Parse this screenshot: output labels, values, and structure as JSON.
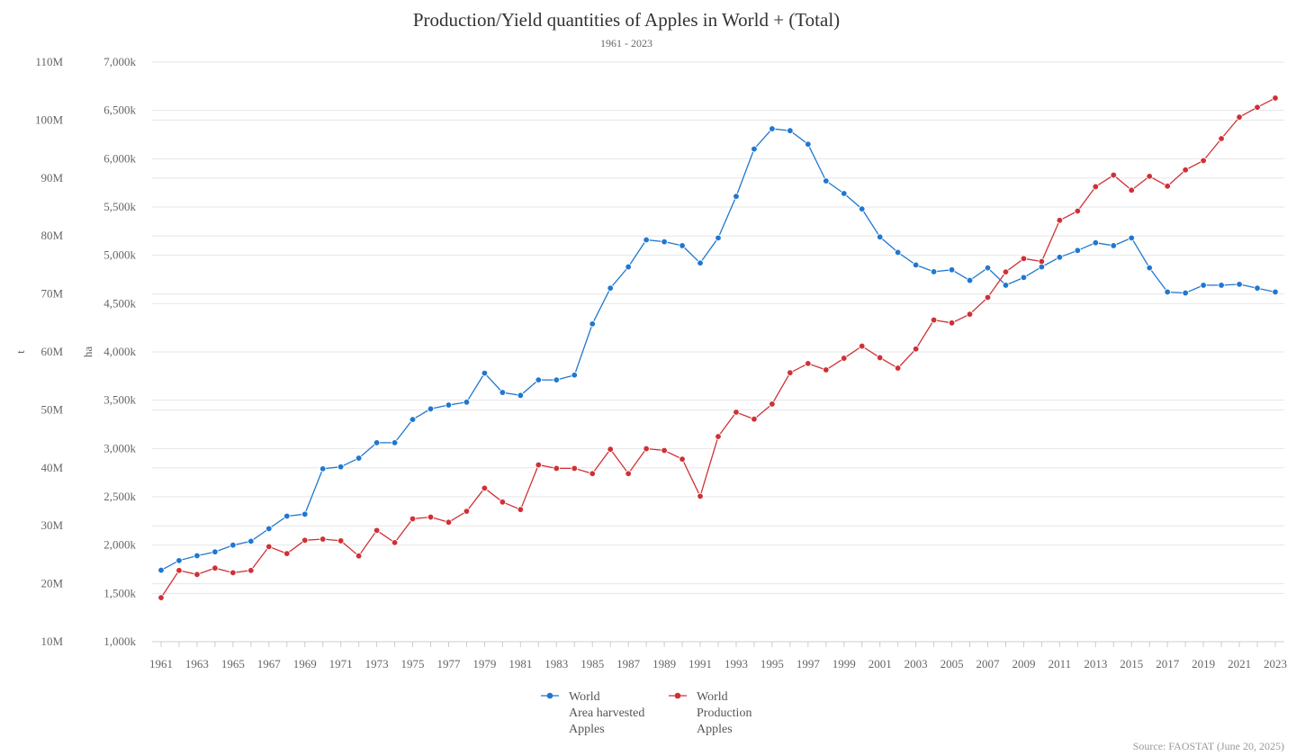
{
  "chart_data": {
    "type": "line",
    "title": "Production/Yield quantities of Apples in World + (Total)",
    "subtitle": "1961 - 2023",
    "source": "Source: FAOSTAT (June 20, 2025)",
    "y_left_outer": {
      "label": "t",
      "range": [
        10000000,
        110000000
      ],
      "tick_labels": [
        "10M",
        "20M",
        "30M",
        "40M",
        "50M",
        "60M",
        "70M",
        "80M",
        "90M",
        "100M",
        "110M"
      ]
    },
    "y_left_inner": {
      "label": "ha",
      "range": [
        1000000,
        7000000
      ],
      "tick_labels": [
        "1,000k",
        "1,500k",
        "2,000k",
        "2,500k",
        "3,000k",
        "3,500k",
        "4,000k",
        "4,500k",
        "5,000k",
        "5,500k",
        "6,000k",
        "6,500k",
        "7,000k"
      ]
    },
    "x_tick_labels": [
      "1961",
      "1963",
      "1965",
      "1967",
      "1969",
      "1971",
      "1973",
      "1975",
      "1977",
      "1979",
      "1981",
      "1983",
      "1985",
      "1987",
      "1989",
      "1991",
      "1993",
      "1995",
      "1997",
      "1999",
      "2001",
      "2003",
      "2005",
      "2007",
      "2009",
      "2011",
      "2013",
      "2015",
      "2017",
      "2019",
      "2021",
      "2023"
    ],
    "x": [
      1961,
      1962,
      1963,
      1964,
      1965,
      1966,
      1967,
      1968,
      1969,
      1970,
      1971,
      1972,
      1973,
      1974,
      1975,
      1976,
      1977,
      1978,
      1979,
      1980,
      1981,
      1982,
      1983,
      1984,
      1985,
      1986,
      1987,
      1988,
      1989,
      1990,
      1991,
      1992,
      1993,
      1994,
      1995,
      1996,
      1997,
      1998,
      1999,
      2000,
      2001,
      2002,
      2003,
      2004,
      2005,
      2006,
      2007,
      2008,
      2009,
      2010,
      2011,
      2012,
      2013,
      2014,
      2015,
      2016,
      2017,
      2018,
      2019,
      2020,
      2021,
      2022,
      2023
    ],
    "series": [
      {
        "name": "World\nArea harvested\nApples",
        "legend_lines": [
          "World",
          "Area harvested",
          "Apples"
        ],
        "axis": "ha",
        "color": "#1f77d0",
        "values": [
          1740000,
          1840000,
          1890000,
          1930000,
          2000000,
          2040000,
          2170000,
          2300000,
          2320000,
          2790000,
          2810000,
          2900000,
          3060000,
          3060000,
          3300000,
          3410000,
          3450000,
          3480000,
          3780000,
          3580000,
          3550000,
          3710000,
          3710000,
          3760000,
          4290000,
          4660000,
          4880000,
          5160000,
          5140000,
          5100000,
          4920000,
          5180000,
          5610000,
          6100000,
          6310000,
          6290000,
          6150000,
          5770000,
          5640000,
          5480000,
          5190000,
          5030000,
          4900000,
          4830000,
          4850000,
          4740000,
          4870000,
          4690000,
          4770000,
          4880000,
          4980000,
          5050000,
          5130000,
          5100000,
          5180000,
          4870000,
          4620000,
          4610000,
          4690000,
          4690000,
          4700000,
          4660000,
          4620000
        ]
      },
      {
        "name": "World\nProduction\nApples",
        "legend_lines": [
          "World",
          "Production",
          "Apples"
        ],
        "axis": "t",
        "color": "#d03035",
        "values": [
          17600000,
          22300000,
          21600000,
          22700000,
          21900000,
          22300000,
          26400000,
          25200000,
          27500000,
          27700000,
          27400000,
          24800000,
          29200000,
          27100000,
          31200000,
          31500000,
          30600000,
          32500000,
          36500000,
          34100000,
          32800000,
          40500000,
          39900000,
          39900000,
          39000000,
          43200000,
          39000000,
          43300000,
          43000000,
          41500000,
          35100000,
          45400000,
          49600000,
          48400000,
          51000000,
          56400000,
          58000000,
          56900000,
          58900000,
          61000000,
          59000000,
          57200000,
          60500000,
          65500000,
          65000000,
          66500000,
          69400000,
          73800000,
          76100000,
          75600000,
          82700000,
          84300000,
          88500000,
          90500000,
          87900000,
          90300000,
          88600000,
          91400000,
          93000000,
          96800000,
          100500000,
          102200000,
          103800000
        ]
      }
    ],
    "grid": true,
    "legend_position": "bottom-center"
  }
}
